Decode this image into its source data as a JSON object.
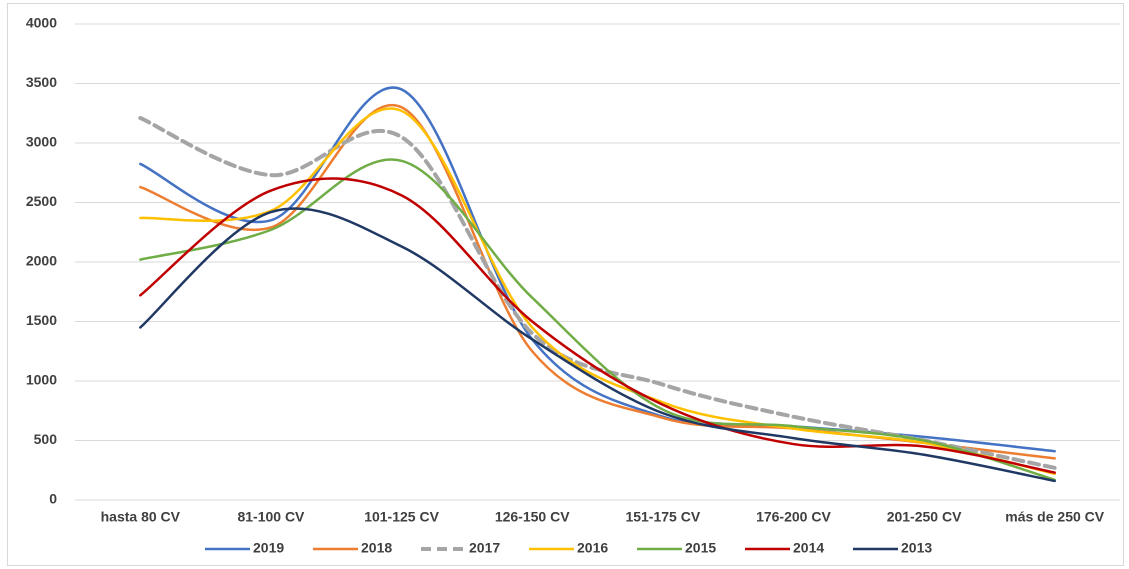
{
  "chart_data": {
    "type": "line",
    "smooth": true,
    "categories": [
      "hasta 80 CV",
      "81-100 CV",
      "101-125 CV",
      "126-150 CV",
      "151-175 CV",
      "176-200 CV",
      "201-250 CV",
      "más de 250 CV"
    ],
    "series": [
      {
        "name": "2019",
        "color": "#4472c4",
        "values": [
          2824,
          2350,
          3450,
          1350,
          700,
          620,
          530,
          410
        ]
      },
      {
        "name": "2018",
        "color": "#ed7d31",
        "values": [
          2630,
          2290,
          3300,
          1250,
          690,
          600,
          480,
          350
        ]
      },
      {
        "name": "2017",
        "color": "#a5a5a5",
        "dashed": true,
        "values": [
          3210,
          2730,
          3050,
          1400,
          970,
          700,
          500,
          270
        ]
      },
      {
        "name": "2016",
        "color": "#ffc000",
        "values": [
          2370,
          2430,
          3270,
          1450,
          820,
          600,
          480,
          220
        ]
      },
      {
        "name": "2015",
        "color": "#70ad47",
        "values": [
          2020,
          2270,
          2850,
          1700,
          760,
          620,
          500,
          170
        ]
      },
      {
        "name": "2014",
        "color": "#c00000",
        "values": [
          1720,
          2600,
          2560,
          1500,
          800,
          470,
          450,
          230
        ]
      },
      {
        "name": "2013",
        "color": "#203864",
        "values": [
          1450,
          2420,
          2130,
          1350,
          730,
          520,
          380,
          160
        ]
      }
    ],
    "ylim": [
      0,
      4000
    ],
    "yticks": [
      0,
      500,
      1000,
      1500,
      2000,
      2500,
      3000,
      3500,
      4000
    ],
    "grid": true,
    "legend": "bottom"
  }
}
